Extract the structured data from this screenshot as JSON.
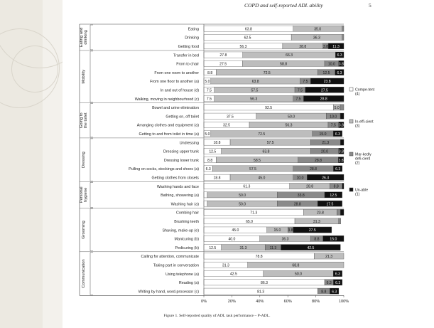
{
  "page": {
    "running_head": "COPD and self-reported ADL ability",
    "page_number": "5",
    "caption": "Figure 1. Self-reported quality of ADL task performance – P-ADL."
  },
  "chart_data": {
    "type": "bar",
    "orientation": "horizontal",
    "stacked": true,
    "xlim": [
      0,
      100
    ],
    "x_ticks": [
      "0%",
      "20%",
      "40%",
      "60%",
      "80%",
      "100%"
    ],
    "grid": false,
    "legend_position": "right",
    "series": [
      {
        "name": "Compe-tent (4)",
        "color": "#ffffff"
      },
      {
        "name": "In-effi-cient (3)",
        "color": "#bdbdbd"
      },
      {
        "name": "Mar-kedly defi-cient (2)",
        "color": "#8a8a8a"
      },
      {
        "name": "Un-able (1)",
        "color": "#111111"
      }
    ],
    "groups": [
      {
        "name": "Eating and drinking",
        "tasks": [
          {
            "label": "Eating",
            "values": [
              63.8,
              35.0,
              1.3,
              0
            ]
          },
          {
            "label": "Drinking",
            "values": [
              62.5,
              36.3,
              1.3,
              0
            ]
          },
          {
            "label": "Getting food",
            "values": [
              56.3,
              28.8,
              3.8,
              11.3
            ]
          }
        ]
      },
      {
        "name": "Mobility",
        "tasks": [
          {
            "label": "Transfer in bed",
            "values": [
              27.8,
              66.3,
              0,
              6.3
            ]
          },
          {
            "label": "From to chair",
            "values": [
              27.5,
              58.8,
              10.0,
              3.8
            ]
          },
          {
            "label": "From one room to another",
            "values": [
              8.8,
              72.5,
              12.5,
              6.3
            ]
          },
          {
            "label": "From one floor to another (a)",
            "values": [
              5.0,
              63.8,
              7.5,
              23.8
            ]
          },
          {
            "label": "In and out of house (d)",
            "values": [
              7.5,
              57.5,
              7.5,
              27.5
            ]
          },
          {
            "label": "Walking, moving in neighbourhood (c)",
            "values": [
              7.5,
              56.3,
              7.5,
              28.8
            ]
          }
        ]
      },
      {
        "name": "Going to the toilet",
        "tasks": [
          {
            "label": "Bowel and urine elimination",
            "values": [
              92.5,
              5.0,
              2.5,
              0
            ]
          },
          {
            "label": "Getting on, off toilet",
            "values": [
              37.5,
              50.0,
              10.0,
              2.5
            ]
          },
          {
            "label": "Arranging clothes and equipment (a)",
            "values": [
              32.5,
              56.3,
              7.5,
              3.8
            ]
          },
          {
            "label": "Getting to and from toilet in time (a)",
            "values": [
              5.0,
              72.5,
              15.0,
              6.3
            ]
          }
        ]
      },
      {
        "name": "Dressing",
        "tasks": [
          {
            "label": "Undressing",
            "values": [
              18.8,
              57.5,
              21.3,
              2.5
            ]
          },
          {
            "label": "Dressing upper trunk",
            "values": [
              12.5,
              63.8,
              20.0,
              3.8
            ]
          },
          {
            "label": "Dressing lower trunk",
            "values": [
              8.8,
              58.5,
              28.8,
              3.8
            ]
          },
          {
            "label": "Pulling on socks, stockings and shoes (a)",
            "values": [
              6.3,
              57.5,
              28.8,
              6.3
            ]
          },
          {
            "label": "Getting clothes from closets",
            "values": [
              18.8,
              45.0,
              10.0,
              26.3
            ]
          }
        ]
      },
      {
        "name": "Personal hygiene",
        "tasks": [
          {
            "label": "Washing hands and face",
            "values": [
              61.3,
              28.8,
              8.8,
              1.3
            ]
          },
          {
            "label": "Bathing, showering (a)",
            "values": [
              2.5,
              50.0,
              33.8,
              12.5
            ]
          },
          {
            "label": "Washing hair (a)",
            "values": [
              2.5,
              50.0,
              28.8,
              17.5
            ]
          }
        ]
      },
      {
        "name": "Grooming",
        "tasks": [
          {
            "label": "Combing hair",
            "values": [
              71.3,
              23.8,
              2.5,
              2.5
            ]
          },
          {
            "label": "Brushing teeth",
            "values": [
              65.0,
              31.3,
              1.5,
              0
            ]
          },
          {
            "label": "Shaving, make-up (e)",
            "values": [
              45.0,
              15.0,
              3.8,
              27.5
            ]
          },
          {
            "label": "Manicuring (b)",
            "values": [
              40.0,
              36.3,
              8.8,
              15.0
            ]
          },
          {
            "label": "Pedicuring (b)",
            "values": [
              12.5,
              31.3,
              11.3,
              42.5
            ]
          }
        ]
      },
      {
        "name": "Communication",
        "tasks": [
          {
            "label": "Calling for attention, communicate",
            "values": [
              78.8,
              21.3,
              0,
              0
            ]
          },
          {
            "label": "Taking part in conversation",
            "values": [
              31.3,
              68.8,
              0,
              0
            ]
          },
          {
            "label": "Using telephone (a)",
            "values": [
              42.5,
              50.0,
              0,
              6.3
            ]
          },
          {
            "label": "Reading (a)",
            "values": [
              86.3,
              0,
              6.3,
              6.3
            ]
          },
          {
            "label": "Writing by hand, word-processor (c)",
            "values": [
              81.3,
              0,
              8.8,
              6.3
            ]
          }
        ]
      }
    ]
  }
}
